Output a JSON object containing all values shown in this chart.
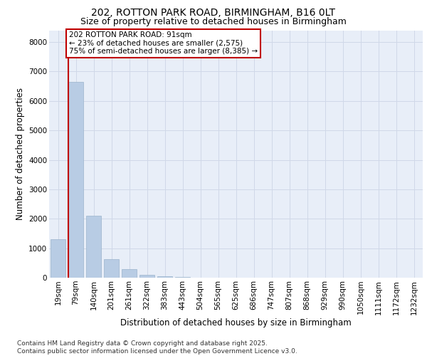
{
  "title1": "202, ROTTON PARK ROAD, BIRMINGHAM, B16 0LT",
  "title2": "Size of property relative to detached houses in Birmingham",
  "xlabel": "Distribution of detached houses by size in Birmingham",
  "ylabel": "Number of detached properties",
  "categories": [
    "19sqm",
    "79sqm",
    "140sqm",
    "201sqm",
    "261sqm",
    "322sqm",
    "383sqm",
    "443sqm",
    "504sqm",
    "565sqm",
    "625sqm",
    "686sqm",
    "747sqm",
    "807sqm",
    "868sqm",
    "929sqm",
    "990sqm",
    "1050sqm",
    "1111sqm",
    "1172sqm",
    "1232sqm"
  ],
  "values": [
    1300,
    6650,
    2100,
    620,
    280,
    100,
    50,
    30,
    10,
    5,
    5,
    3,
    2,
    2,
    1,
    1,
    1,
    0,
    0,
    0,
    0
  ],
  "bar_color": "#b8cce4",
  "bar_edgecolor": "#9ab3cb",
  "highlight_bar_index": 1,
  "highlight_color": "#c00000",
  "annotation_text": "202 ROTTON PARK ROAD: 91sqm\n← 23% of detached houses are smaller (2,575)\n75% of semi-detached houses are larger (8,385) →",
  "annotation_box_edgecolor": "#c00000",
  "annotation_box_facecolor": "#ffffff",
  "ylim": [
    0,
    8400
  ],
  "yticks": [
    0,
    1000,
    2000,
    3000,
    4000,
    5000,
    6000,
    7000,
    8000
  ],
  "grid_color": "#d0d8e8",
  "background_color": "#e8eef8",
  "footer_text": "Contains HM Land Registry data © Crown copyright and database right 2025.\nContains public sector information licensed under the Open Government Licence v3.0.",
  "title_fontsize": 10,
  "subtitle_fontsize": 9,
  "axis_label_fontsize": 8.5,
  "tick_fontsize": 7.5,
  "annotation_fontsize": 7.5,
  "footer_fontsize": 6.5
}
